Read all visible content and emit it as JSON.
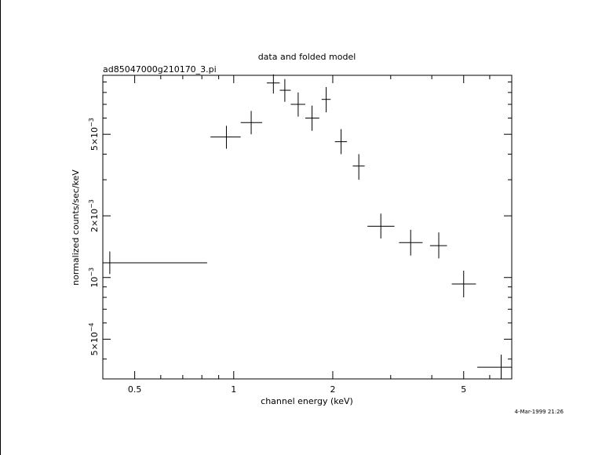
{
  "chart_data": {
    "type": "scatter",
    "title": "data and folded model",
    "subtitle": "ad85047000g210170_3.pi",
    "xlabel": "channel energy (keV)",
    "ylabel": "normalized counts/sec/keV",
    "x_scale": "log",
    "y_scale": "log",
    "xlim": [
      0.4,
      7.0
    ],
    "ylim": [
      0.00032,
      0.0097
    ],
    "x_tick_labels": [
      {
        "value": 0.5,
        "label": "0.5"
      },
      {
        "value": 1,
        "label": "1"
      },
      {
        "value": 2,
        "label": "2"
      },
      {
        "value": 5,
        "label": "5"
      }
    ],
    "y_tick_labels": [
      {
        "value": 0.0005,
        "mantissa": "5×10",
        "exp": "−4"
      },
      {
        "value": 0.001,
        "mantissa": "10",
        "exp": "−3"
      },
      {
        "value": 0.002,
        "mantissa": "2×10",
        "exp": "−3"
      },
      {
        "value": 0.005,
        "mantissa": "5×10",
        "exp": "−3"
      }
    ],
    "points": [
      {
        "x": 0.42,
        "xlo": 0.4,
        "xhi": 0.83,
        "y": 0.00118,
        "ylo": 0.00104,
        "yhi": 0.00134
      },
      {
        "x": 0.95,
        "xlo": 0.85,
        "xhi": 1.05,
        "y": 0.00485,
        "ylo": 0.00425,
        "yhi": 0.0055
      },
      {
        "x": 1.13,
        "xlo": 1.05,
        "xhi": 1.22,
        "y": 0.0057,
        "ylo": 0.005,
        "yhi": 0.0065
      },
      {
        "x": 1.32,
        "xlo": 1.26,
        "xhi": 1.38,
        "y": 0.0089,
        "ylo": 0.0079,
        "yhi": 0.0098
      },
      {
        "x": 1.43,
        "xlo": 1.38,
        "xhi": 1.49,
        "y": 0.0082,
        "ylo": 0.0072,
        "yhi": 0.0093
      },
      {
        "x": 1.57,
        "xlo": 1.49,
        "xhi": 1.65,
        "y": 0.007,
        "ylo": 0.0061,
        "yhi": 0.008
      },
      {
        "x": 1.73,
        "xlo": 1.65,
        "xhi": 1.82,
        "y": 0.006,
        "ylo": 0.0052,
        "yhi": 0.0069
      },
      {
        "x": 1.91,
        "xlo": 1.85,
        "xhi": 1.97,
        "y": 0.0074,
        "ylo": 0.0064,
        "yhi": 0.0085
      },
      {
        "x": 2.12,
        "xlo": 2.03,
        "xhi": 2.21,
        "y": 0.0046,
        "ylo": 0.004,
        "yhi": 0.0053
      },
      {
        "x": 2.4,
        "xlo": 2.3,
        "xhi": 2.5,
        "y": 0.0035,
        "ylo": 0.003,
        "yhi": 0.004
      },
      {
        "x": 2.8,
        "xlo": 2.55,
        "xhi": 3.08,
        "y": 0.00178,
        "ylo": 0.00155,
        "yhi": 0.00205
      },
      {
        "x": 3.45,
        "xlo": 3.18,
        "xhi": 3.75,
        "y": 0.00148,
        "ylo": 0.00128,
        "yhi": 0.00171
      },
      {
        "x": 4.2,
        "xlo": 3.95,
        "xhi": 4.45,
        "y": 0.00143,
        "ylo": 0.00124,
        "yhi": 0.00166
      },
      {
        "x": 5.0,
        "xlo": 4.6,
        "xhi": 5.45,
        "y": 0.00093,
        "ylo": 0.0008,
        "yhi": 0.00108
      },
      {
        "x": 6.5,
        "xlo": 5.5,
        "xhi": 7.0,
        "y": 0.000365,
        "ylo": 0.00032,
        "yhi": 0.00042
      }
    ],
    "grid": false,
    "legend": "none"
  },
  "footer": {
    "timestamp": "4-Mar-1999 21:26"
  }
}
